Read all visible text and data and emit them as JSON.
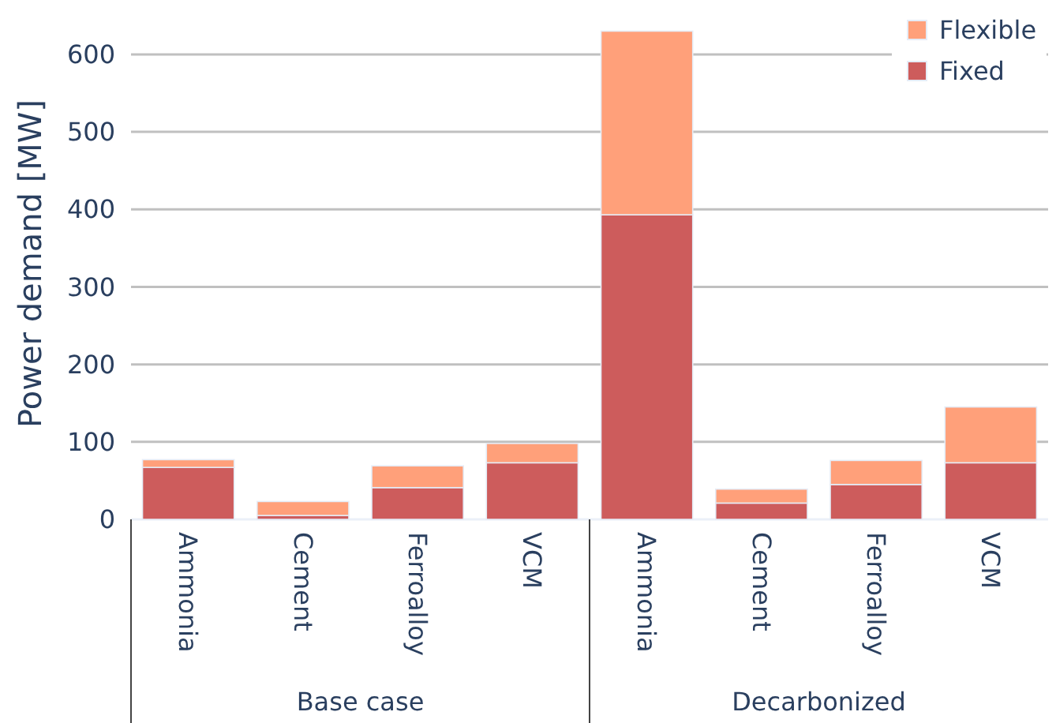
{
  "chart_data": {
    "type": "bar",
    "stacked": true,
    "ylabel": "Power demand [MW]",
    "categories": [
      "Ammonia",
      "Cement",
      "Ferroalloy",
      "VCM",
      "Ammonia",
      "Cement",
      "Ferroalloy",
      "VCM"
    ],
    "series": [
      {
        "name": "Fixed",
        "color": "#cd5c5c",
        "values": [
          67,
          5,
          41,
          73,
          393,
          21,
          45,
          73
        ]
      },
      {
        "name": "Flexible",
        "color": "#ffa07a",
        "values": [
          10,
          18,
          28,
          25,
          237,
          18,
          31,
          72
        ]
      }
    ],
    "ylim": [
      0,
      660
    ],
    "yticks": [
      0,
      100,
      200,
      300,
      400,
      500,
      600
    ],
    "grid": "y",
    "legend": "top right",
    "annotations": [
      "Base case",
      "Decarbonized"
    ]
  }
}
